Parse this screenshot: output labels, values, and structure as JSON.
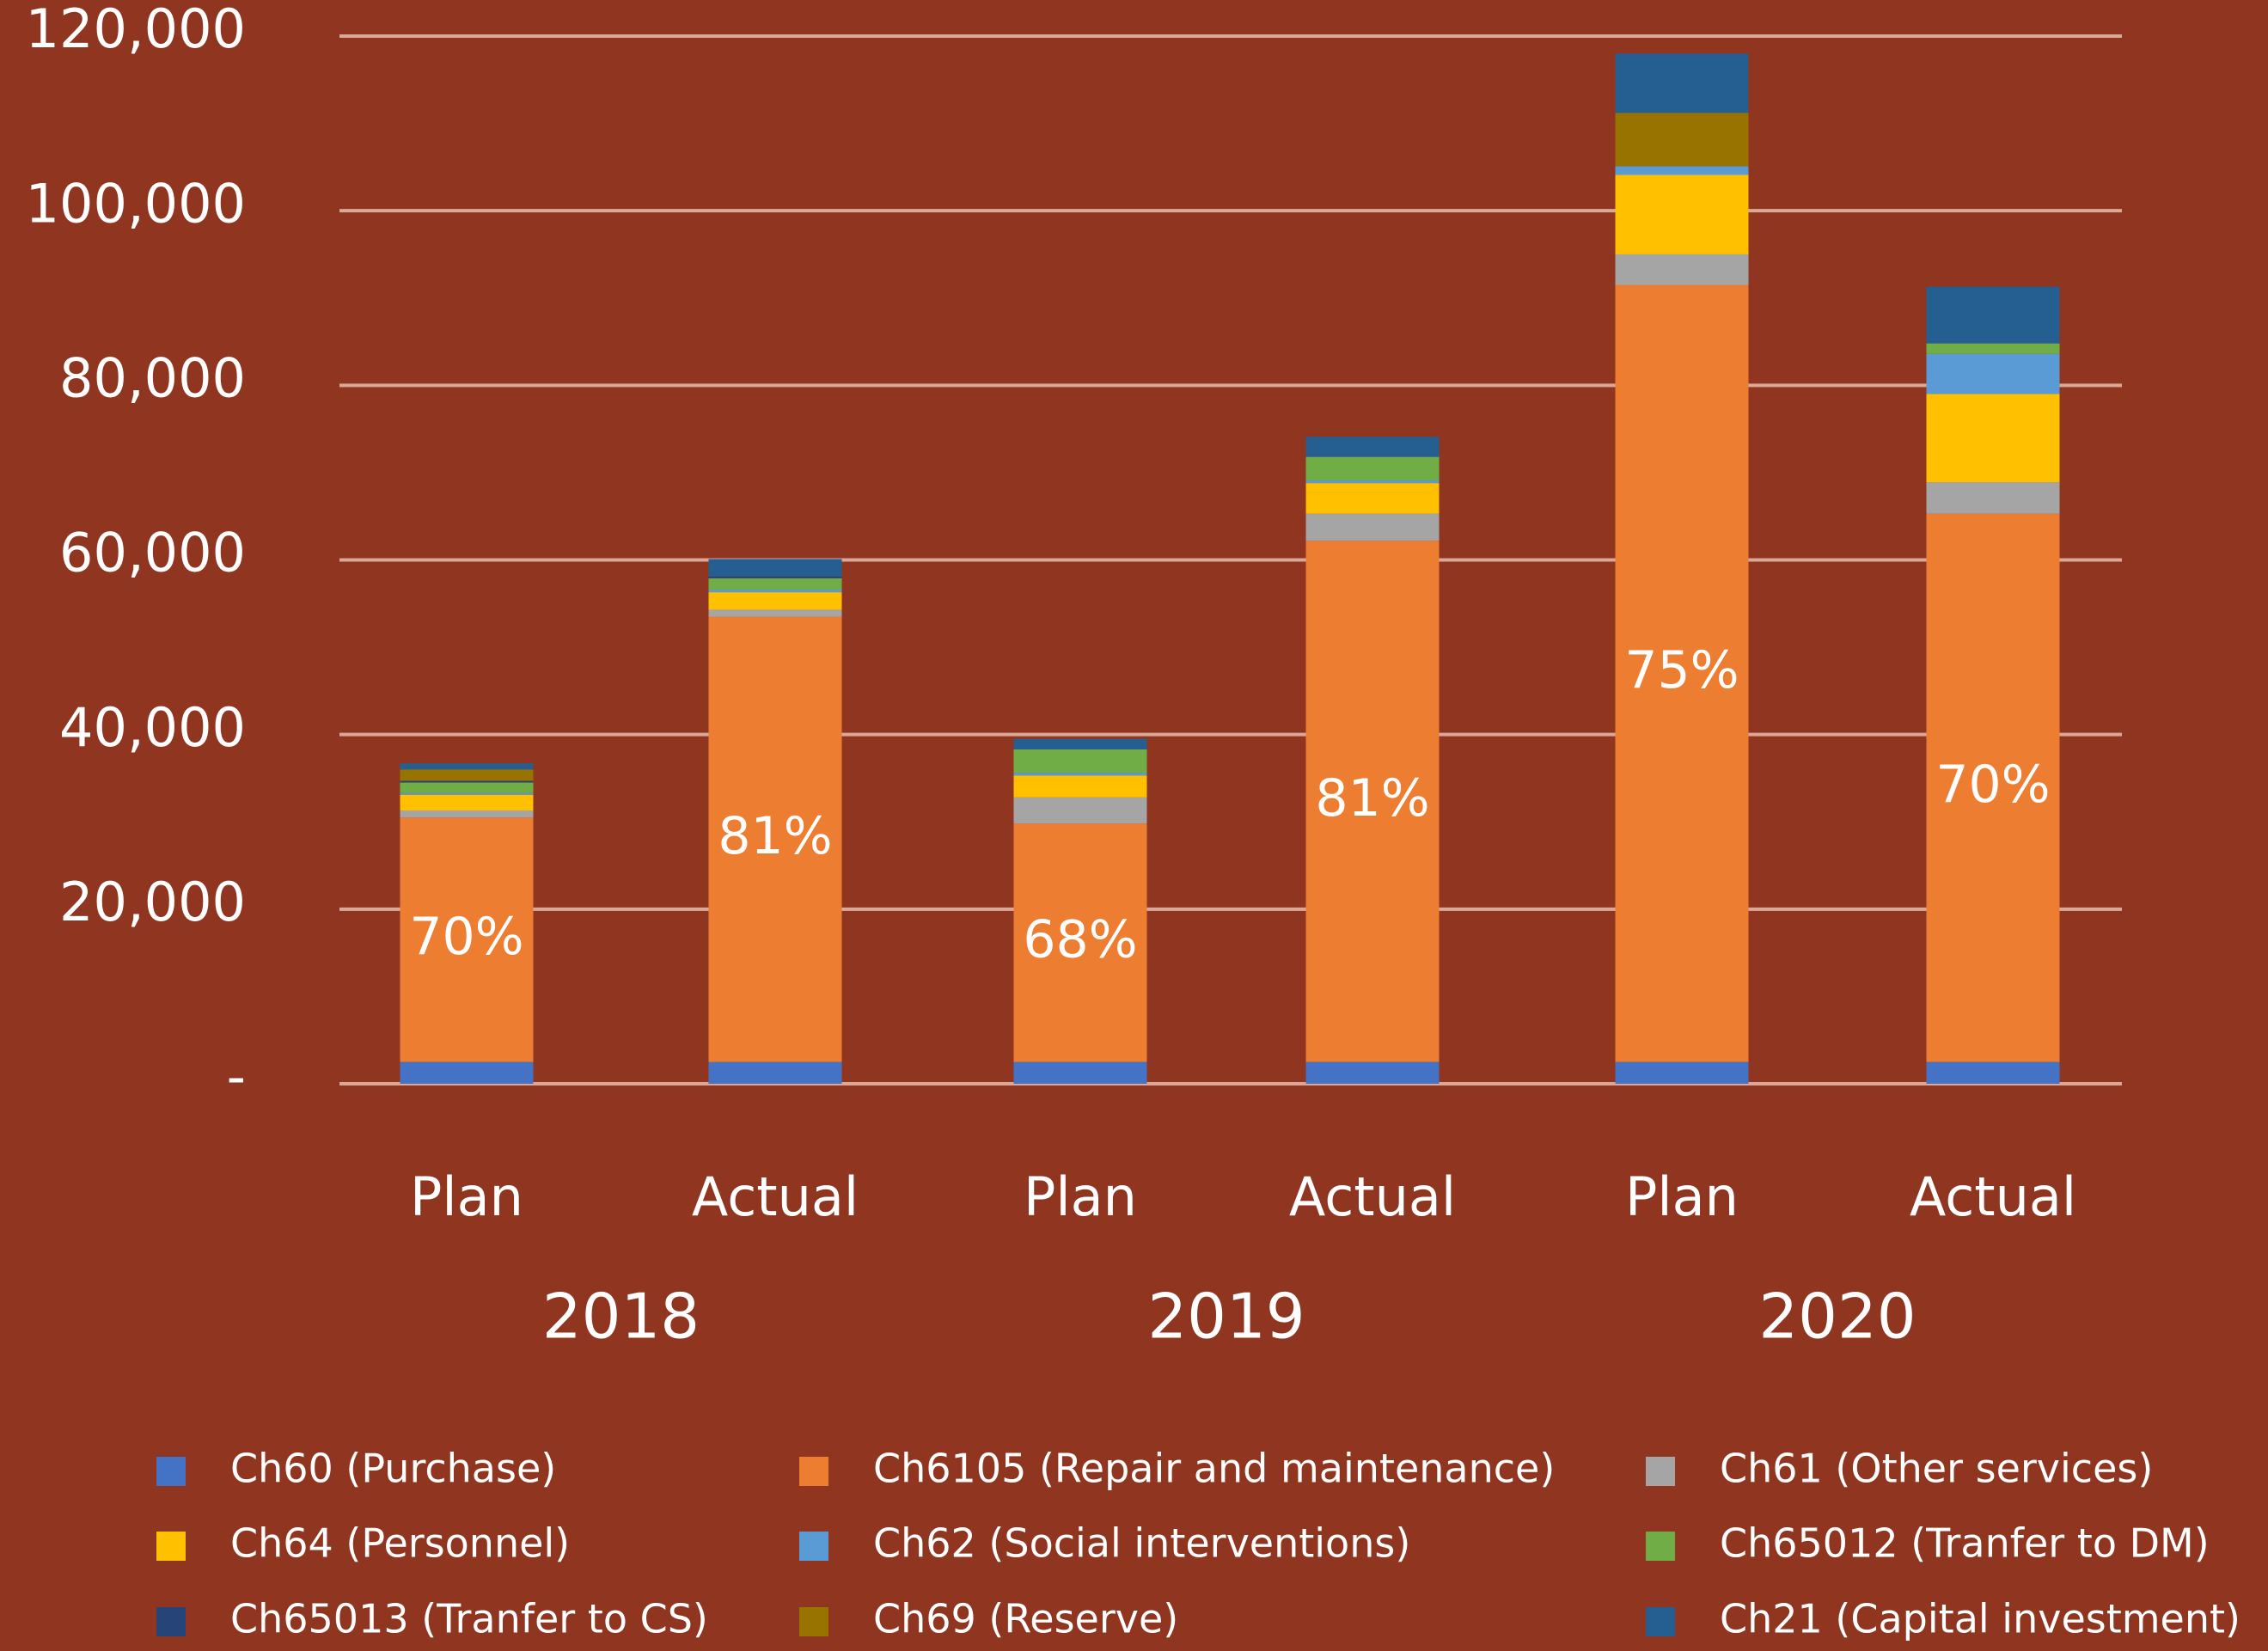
{
  "chart_data": {
    "type": "stacked_bar",
    "categories": [
      "Plan",
      "Actual",
      "Plan",
      "Actual",
      "Plan",
      "Actual"
    ],
    "groups": [
      "2018",
      "2019",
      "2020"
    ],
    "share_labels": [
      "70%",
      "81%",
      "68%",
      "81%",
      "75%",
      "70%"
    ],
    "series": [
      {
        "name": "Ch60 (Purchase)",
        "color": "#4472c4",
        "values": [
          2500,
          2500,
          2500,
          2500,
          2500,
          2500
        ]
      },
      {
        "name": "Ch6105 (Repair and maintenance)",
        "color": "#ed7d31",
        "values": [
          28000,
          51000,
          27300,
          59700,
          89000,
          62800
        ]
      },
      {
        "name": "Ch61 (Other services)",
        "color": "#a5a5a5",
        "values": [
          800,
          800,
          3000,
          3100,
          3500,
          3600
        ]
      },
      {
        "name": "Ch64 (Personnel)",
        "color": "#ffc000",
        "values": [
          1800,
          2000,
          2500,
          3500,
          9100,
          10100
        ]
      },
      {
        "name": "Ch62 (Social interventions)",
        "color": "#5b9bd5",
        "values": [
          200,
          300,
          300,
          300,
          1000,
          4600
        ]
      },
      {
        "name": "Ch65012 (Tranfer to DM)",
        "color": "#70ad47",
        "values": [
          1200,
          1300,
          2700,
          2700,
          0,
          1200
        ]
      },
      {
        "name": "Ch65013 (Tranfer to CS)",
        "color": "#264478",
        "values": [
          200,
          200,
          0,
          0,
          0,
          0
        ]
      },
      {
        "name": "Ch69 (Reserve)",
        "color": "#997300",
        "values": [
          1300,
          0,
          0,
          0,
          6100,
          0
        ]
      },
      {
        "name": "Ch21 (Capital investment)",
        "color": "#255e91",
        "values": [
          700,
          2000,
          1200,
          2300,
          6800,
          6500
        ]
      }
    ],
    "ylim": [
      0,
      120000
    ],
    "yticks": [
      {
        "value": 0,
        "label": "-"
      },
      {
        "value": 20000,
        "label": "20,000"
      },
      {
        "value": 40000,
        "label": "40,000"
      },
      {
        "value": 60000,
        "label": "60,000"
      },
      {
        "value": 80000,
        "label": "80,000"
      },
      {
        "value": 100000,
        "label": "100,000"
      },
      {
        "value": 120000,
        "label": "120,000"
      }
    ],
    "grid": true
  }
}
